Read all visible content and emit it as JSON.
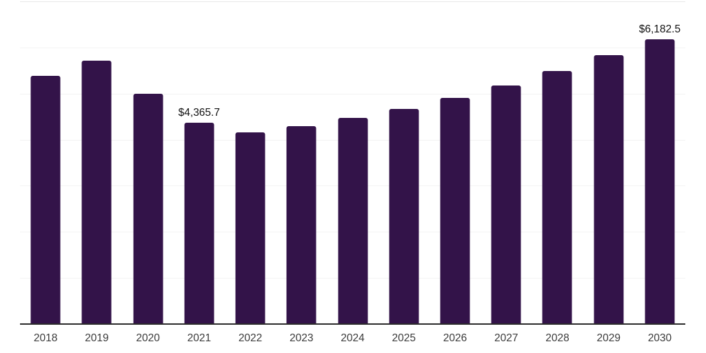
{
  "chart_data": {
    "type": "bar",
    "title": "",
    "xlabel": "",
    "ylabel": "",
    "categories": [
      "2018",
      "2019",
      "2020",
      "2021",
      "2022",
      "2023",
      "2024",
      "2025",
      "2026",
      "2027",
      "2028",
      "2029",
      "2030"
    ],
    "values": [
      5380,
      5707,
      4990,
      4365.7,
      4153,
      4288,
      4467,
      4660,
      4900,
      5170,
      5483,
      5827,
      6182.5
    ],
    "annotations": [
      {
        "category": "2021",
        "text": "$4,365.7"
      },
      {
        "category": "2030",
        "text": "$6,182.5"
      }
    ],
    "ylim": [
      0,
      7000
    ],
    "gridline_step": 1000,
    "grid": true,
    "legend": false,
    "colors": {
      "bar": "#331349",
      "axis": "#2b2b2b",
      "gridline": "#f3f3f3",
      "top_gridline": "#e8e8e8",
      "tick_label": "#3a3a3a",
      "data_label": "#111111",
      "background": "#ffffff"
    }
  }
}
